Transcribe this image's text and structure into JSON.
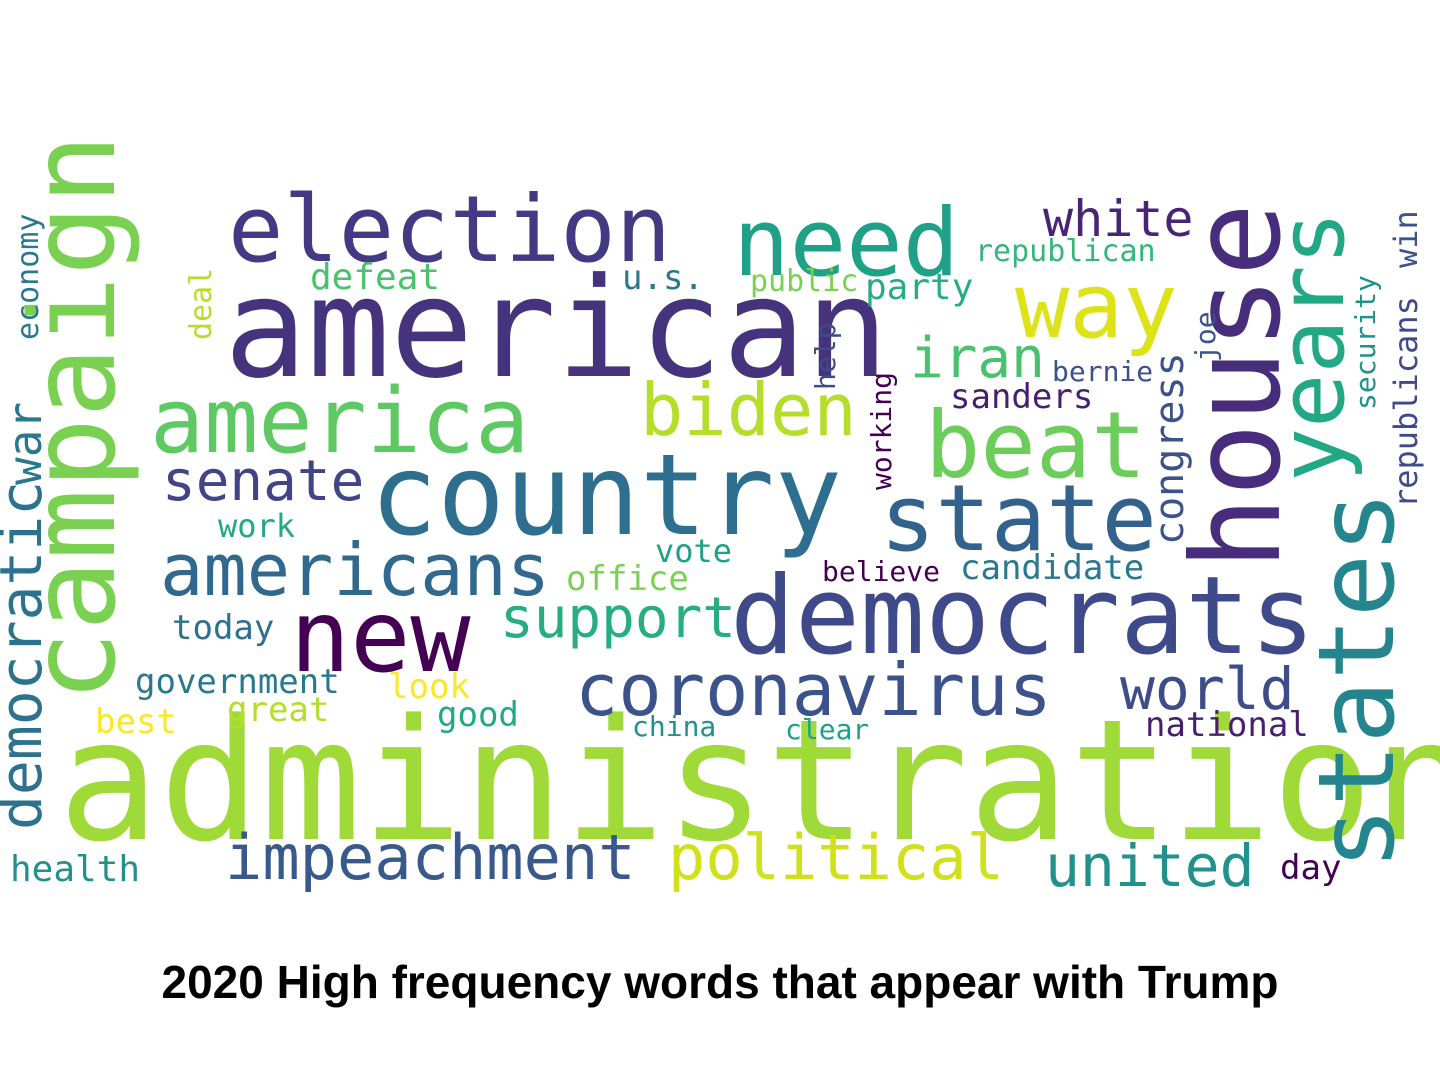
{
  "caption": "2020 High frequency words that appear with Trump",
  "words": [
    {
      "text": "administration",
      "color": "#a0da39"
    },
    {
      "text": "american",
      "color": "#46337e"
    },
    {
      "text": "country",
      "color": "#2e6e8e"
    },
    {
      "text": "democrats",
      "color": "#3e4a89"
    },
    {
      "text": "house",
      "color": "#472d7b"
    },
    {
      "text": "campaign",
      "color": "#7ad151"
    },
    {
      "text": "election",
      "color": "#443983"
    },
    {
      "text": "states",
      "color": "#25858e"
    },
    {
      "text": "new",
      "color": "#440154"
    },
    {
      "text": "need",
      "color": "#1fa187"
    },
    {
      "text": "america",
      "color": "#5ec962"
    },
    {
      "text": "beat",
      "color": "#6ccd5a"
    },
    {
      "text": "state",
      "color": "#33638d"
    },
    {
      "text": "years",
      "color": "#22a884"
    },
    {
      "text": "way",
      "color": "#dde318"
    },
    {
      "text": "coronavirus",
      "color": "#3b528b"
    },
    {
      "text": "biden",
      "color": "#b5de2b"
    },
    {
      "text": "americans",
      "color": "#31688e"
    },
    {
      "text": "political",
      "color": "#d0e11c"
    },
    {
      "text": "impeachment",
      "color": "#38598c"
    },
    {
      "text": "democratic",
      "color": "#2c728e"
    },
    {
      "text": "united",
      "color": "#21918c"
    },
    {
      "text": "support",
      "color": "#27ad81"
    },
    {
      "text": "senate",
      "color": "#414487"
    },
    {
      "text": "world",
      "color": "#3e4c8a"
    },
    {
      "text": "white",
      "color": "#482475"
    },
    {
      "text": "iran",
      "color": "#4ac16d"
    },
    {
      "text": "congress",
      "color": "#3b528b"
    },
    {
      "text": "war",
      "color": "#2a788e"
    },
    {
      "text": "republicans",
      "color": "#3e4a89"
    },
    {
      "text": "security",
      "color": "#21918c"
    },
    {
      "text": "win",
      "color": "#3b528b"
    },
    {
      "text": "economy",
      "color": "#2a788e"
    },
    {
      "text": "deal",
      "color": "#b5de2b"
    },
    {
      "text": "defeat",
      "color": "#4ac16d"
    },
    {
      "text": "u.s.",
      "color": "#2a788e"
    },
    {
      "text": "public",
      "color": "#7ad151"
    },
    {
      "text": "party",
      "color": "#27ad81"
    },
    {
      "text": "republican",
      "color": "#35b779"
    },
    {
      "text": "help",
      "color": "#3e4a89"
    },
    {
      "text": "working",
      "color": "#440154"
    },
    {
      "text": "sanders",
      "color": "#481f70"
    },
    {
      "text": "bernie",
      "color": "#3b528b"
    },
    {
      "text": "joe",
      "color": "#3b528b"
    },
    {
      "text": "work",
      "color": "#22a884"
    },
    {
      "text": "vote",
      "color": "#1fa187"
    },
    {
      "text": "office",
      "color": "#7ad151"
    },
    {
      "text": "believe",
      "color": "#440154"
    },
    {
      "text": "candidate",
      "color": "#2a788e"
    },
    {
      "text": "today",
      "color": "#2c728e"
    },
    {
      "text": "government",
      "color": "#2a788e"
    },
    {
      "text": "look",
      "color": "#fde725"
    },
    {
      "text": "great",
      "color": "#b5de2b"
    },
    {
      "text": "best",
      "color": "#fde725"
    },
    {
      "text": "good",
      "color": "#22a884"
    },
    {
      "text": "china",
      "color": "#21918c"
    },
    {
      "text": "clear",
      "color": "#1fa187"
    },
    {
      "text": "national",
      "color": "#481f70"
    },
    {
      "text": "health",
      "color": "#21918c"
    },
    {
      "text": "day",
      "color": "#440154"
    }
  ]
}
